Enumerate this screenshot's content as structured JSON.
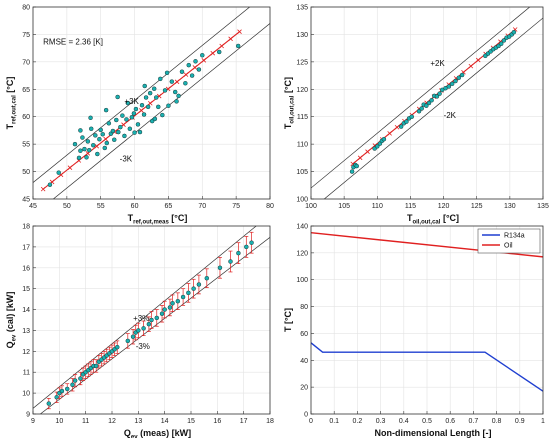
{
  "chart_data": [
    {
      "type": "scatter",
      "xlabel": "T",
      "xlabel_sub": "ref,out,meas",
      "xlabel_unit": " [°C]",
      "ylabel": "T",
      "ylabel_sub": "ref,out,cal",
      "ylabel_unit": " [°C]",
      "xlim": [
        45,
        80
      ],
      "ylim": [
        45,
        80
      ],
      "xticks": [
        45,
        50,
        55,
        60,
        65,
        70,
        75,
        80
      ],
      "yticks": [
        45,
        50,
        55,
        60,
        65,
        70,
        75,
        80
      ],
      "grid": true,
      "annotations": [
        {
          "text": "RMSE = 2.36 [K]",
          "x": 46.5,
          "y": 73.2
        },
        {
          "text": "+3K",
          "x": 58.5,
          "y": 62.3
        },
        {
          "text": "-3K",
          "x": 57.8,
          "y": 51.8
        }
      ],
      "bands": [
        {
          "name": "+3K",
          "offset": 3
        },
        {
          "name": "-3K",
          "offset": -3
        }
      ],
      "fit_line": {
        "color": "#e02020",
        "x": [
          46.5,
          75.5
        ],
        "y": [
          46.8,
          75.5
        ]
      },
      "series": [
        {
          "color": "#1ab0b0",
          "x": [
            47.5,
            48.8,
            51.2,
            51.8,
            52.0,
            52.3,
            52.6,
            52.9,
            53.1,
            53.3,
            53.6,
            53.9,
            54.2,
            54.5,
            54.8,
            55.0,
            55.3,
            55.6,
            55.9,
            56.2,
            56.5,
            56.8,
            57.0,
            57.3,
            57.6,
            57.9,
            58.2,
            58.5,
            58.8,
            59.0,
            59.3,
            59.6,
            59.9,
            60.2,
            60.5,
            60.8,
            61.1,
            61.4,
            61.7,
            62.0,
            62.3,
            62.6,
            62.9,
            63.2,
            63.5,
            63.8,
            64.1,
            64.5,
            65.0,
            65.5,
            66.0,
            66.5,
            67.0,
            67.5,
            68.0,
            68.5,
            69.0,
            69.5,
            70.0,
            72.5,
            75.3,
            52.0,
            53.5,
            55.8,
            57.5,
            60.0,
            61.5,
            63.0,
            64.8,
            66.2
          ],
          "y": [
            47.6,
            49.8,
            55.0,
            52.5,
            53.8,
            56.2,
            54.1,
            52.6,
            55.5,
            53.9,
            57.8,
            54.8,
            56.6,
            53.2,
            55.9,
            57.6,
            56.8,
            54.3,
            55.2,
            58.8,
            56.9,
            57.4,
            55.8,
            59.4,
            57.2,
            58.1,
            60.2,
            56.5,
            59.5,
            62.5,
            57.8,
            59.9,
            60.6,
            61.4,
            58.6,
            57.2,
            62.1,
            60.4,
            63.5,
            61.8,
            64.3,
            59.2,
            65.1,
            63.5,
            61.8,
            66.9,
            60.3,
            64.8,
            62.0,
            66.4,
            64.5,
            63.8,
            68.2,
            66.1,
            69.4,
            67.5,
            70.1,
            68.6,
            71.2,
            71.8,
            72.9,
            57.5,
            59.8,
            61.2,
            63.6,
            57.1,
            65.6,
            59.6,
            68.0,
            62.8
          ]
        }
      ]
    },
    {
      "type": "scatter",
      "xlabel": "T",
      "xlabel_sub": "oil,out,cal",
      "xlabel_unit": " [°C]",
      "ylabel": "T",
      "ylabel_sub": "oil,out,cal",
      "ylabel_unit": " [°C]",
      "xlim": [
        100,
        135
      ],
      "ylim": [
        100,
        135
      ],
      "xticks": [
        100,
        105,
        110,
        115,
        120,
        125,
        130,
        135
      ],
      "yticks": [
        100,
        105,
        110,
        115,
        120,
        125,
        130,
        135
      ],
      "grid": true,
      "annotations": [
        {
          "text": "+2K",
          "x": 118.0,
          "y": 124.2
        },
        {
          "text": "-2K",
          "x": 120.0,
          "y": 114.8
        }
      ],
      "bands": [
        {
          "name": "+2K",
          "offset": 2
        },
        {
          "name": "-2K",
          "offset": -2
        }
      ],
      "fit_line": {
        "color": "#e02020",
        "x": [
          106.3,
          130.8
        ],
        "y": [
          106.4,
          130.9
        ]
      },
      "series": [
        {
          "color": "#1ab0b0",
          "x": [
            106.2,
            106.4,
            106.7,
            106.9,
            109.6,
            110.0,
            110.4,
            110.7,
            111.0,
            113.6,
            114.0,
            114.4,
            114.8,
            115.2,
            116.3,
            116.7,
            117.0,
            117.4,
            117.8,
            118.2,
            118.6,
            119.0,
            119.4,
            119.8,
            120.3,
            120.8,
            121.3,
            121.8,
            122.3,
            122.8,
            126.3,
            126.7,
            127.1,
            127.5,
            127.9,
            128.3,
            128.7,
            129.1,
            129.5,
            129.9,
            130.3,
            130.6
          ],
          "y": [
            105.0,
            105.8,
            106.2,
            106.0,
            109.2,
            109.6,
            110.1,
            110.6,
            110.9,
            113.2,
            113.8,
            114.1,
            114.7,
            115.0,
            116.0,
            116.5,
            117.2,
            117.0,
            117.5,
            118.0,
            118.8,
            118.7,
            119.2,
            119.9,
            120.2,
            120.5,
            121.0,
            121.5,
            122.1,
            122.6,
            126.1,
            126.5,
            126.9,
            127.3,
            127.6,
            127.9,
            128.3,
            128.9,
            129.4,
            129.6,
            130.0,
            130.4
          ]
        }
      ]
    },
    {
      "type": "scatter",
      "xlabel": "Q",
      "xlabel_sub": "ev",
      "xlabel_unit": " (meas) [kW]",
      "ylabel": "Q",
      "ylabel_sub": "ev",
      "ylabel_unit": " (cal) [kW]",
      "xlim": [
        9,
        18
      ],
      "ylim": [
        9,
        18
      ],
      "xticks": [
        9,
        10,
        11,
        12,
        13,
        14,
        15,
        16,
        17,
        18
      ],
      "yticks": [
        9,
        10,
        11,
        12,
        13,
        14,
        15,
        16,
        17,
        18
      ],
      "grid": true,
      "annotations": [
        {
          "text": "+3%",
          "x": 12.8,
          "y": 13.45
        },
        {
          "text": "-3%",
          "x": 12.9,
          "y": 12.1
        }
      ],
      "bands": [
        {
          "name": "+3%",
          "factor": 1.03
        },
        {
          "name": "-3%",
          "factor": 0.97
        }
      ],
      "series": [
        {
          "color": "#1ab0b0",
          "error_color": "#e02020",
          "x": [
            9.6,
            9.9,
            10.0,
            10.1,
            10.3,
            10.5,
            10.6,
            10.8,
            10.9,
            11.0,
            11.1,
            11.2,
            11.3,
            11.4,
            11.5,
            11.6,
            11.7,
            11.8,
            11.9,
            12.0,
            12.1,
            12.2,
            12.6,
            12.8,
            12.9,
            13.0,
            13.2,
            13.4,
            13.5,
            13.7,
            13.9,
            14.0,
            14.2,
            14.3,
            14.5,
            14.7,
            14.9,
            15.1,
            15.3,
            15.6,
            16.1,
            16.5,
            16.8,
            17.1,
            17.3
          ],
          "y": [
            9.5,
            9.8,
            10.0,
            10.1,
            10.2,
            10.4,
            10.6,
            10.7,
            10.9,
            11.0,
            11.1,
            11.2,
            11.3,
            11.3,
            11.5,
            11.6,
            11.7,
            11.8,
            11.9,
            12.0,
            12.1,
            12.2,
            12.5,
            12.7,
            12.9,
            13.0,
            13.1,
            13.3,
            13.5,
            13.6,
            13.8,
            14.0,
            14.1,
            14.3,
            14.4,
            14.6,
            14.8,
            15.0,
            15.2,
            15.5,
            16.0,
            16.3,
            16.7,
            17.0,
            17.2
          ],
          "err": [
            0.25,
            0.25,
            0.25,
            0.25,
            0.25,
            0.3,
            0.3,
            0.3,
            0.3,
            0.3,
            0.3,
            0.3,
            0.3,
            0.3,
            0.3,
            0.3,
            0.3,
            0.3,
            0.3,
            0.3,
            0.3,
            0.3,
            0.35,
            0.35,
            0.35,
            0.35,
            0.35,
            0.35,
            0.4,
            0.4,
            0.4,
            0.4,
            0.4,
            0.4,
            0.4,
            0.4,
            0.45,
            0.45,
            0.45,
            0.45,
            0.5,
            0.5,
            0.5,
            0.5,
            0.5
          ]
        }
      ]
    },
    {
      "type": "line",
      "xlabel": "Non-dimensional Length [-]",
      "ylabel": "T [°C]",
      "xlim": [
        0,
        1
      ],
      "ylim": [
        0,
        140
      ],
      "xticks": [
        0,
        0.1,
        0.2,
        0.3,
        0.4,
        0.5,
        0.6,
        0.7,
        0.8,
        0.9,
        1
      ],
      "xticklabels": [
        "0",
        "0.1",
        "0.2",
        "0.3",
        "0.4",
        "0.5",
        "0.6",
        "0.7",
        "0.8",
        "0.9",
        "1"
      ],
      "yticks": [
        0,
        20,
        40,
        60,
        80,
        100,
        120,
        140
      ],
      "grid": true,
      "legend": "top-right",
      "series": [
        {
          "name": "R134a",
          "color": "#1f3fd0",
          "x": [
            0,
            0.05,
            0.75,
            1.0
          ],
          "y": [
            53,
            46,
            46,
            17
          ]
        },
        {
          "name": "Oil",
          "color": "#e02020",
          "x": [
            0,
            1.0
          ],
          "y": [
            135,
            117
          ]
        }
      ]
    }
  ]
}
